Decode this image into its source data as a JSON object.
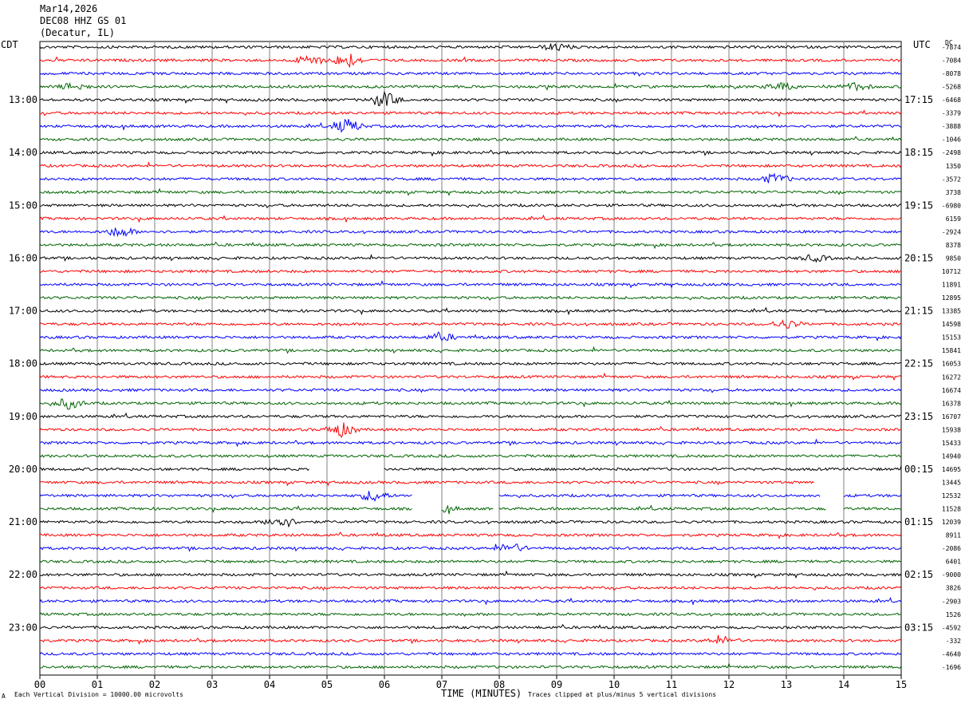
{
  "header": {
    "date": "Mar14,2026",
    "station": "DEC08 HHZ GS 01",
    "location": "(Decatur, IL)"
  },
  "left_zone": "CDT",
  "right_zone": "UTC",
  "dc_label": "DC",
  "footer": {
    "scale_note": "Each Vertical Division = 10000.00 microvolts",
    "clip_note": "Traces clipped at plus/minus 5 vertical divisions",
    "corner_mark": "A"
  },
  "colors": {
    "black": "#000000",
    "red": "#ff0000",
    "blue": "#0000ff",
    "green": "#006400",
    "grid": "#808080"
  },
  "chart_data": {
    "type": "line",
    "title": "Mar14,2026 DEC08 HHZ GS 01 (Decatur, IL)",
    "xlabel": "TIME (MINUTES)",
    "x_ticks": [
      "00",
      "01",
      "02",
      "03",
      "04",
      "05",
      "06",
      "07",
      "08",
      "09",
      "10",
      "11",
      "12",
      "13",
      "14",
      "15"
    ],
    "xlim": [
      0,
      15
    ],
    "trace_color_cycle": [
      "black",
      "red",
      "blue",
      "green"
    ],
    "left_hour_labels": [
      "13:00",
      "14:00",
      "15:00",
      "16:00",
      "17:00",
      "18:00",
      "19:00",
      "20:00",
      "21:00",
      "22:00",
      "23:00"
    ],
    "right_hour_labels": [
      "17:15",
      "18:15",
      "19:15",
      "20:15",
      "21:15",
      "22:15",
      "23:15",
      "00:15",
      "01:15",
      "02:15",
      "03:15"
    ],
    "dc_offsets": [
      "-7874",
      "-7084",
      "-8078",
      "-5268",
      "-6468",
      "-3379",
      "-3888",
      "-1046",
      "-2498",
      "1350",
      "-3572",
      "3738",
      "-6980",
      "6159",
      "-2924",
      "8378",
      "9850",
      "10712",
      "11891",
      "12895",
      "13385",
      "14598",
      "15153",
      "15841",
      "16053",
      "16272",
      "16674",
      "16378",
      "16707",
      "15938",
      "15433",
      "14940",
      "14695",
      "13445",
      "12532",
      "11528",
      "12039",
      "8911",
      "-2086",
      "6401",
      "-9000",
      "3826",
      "-2903",
      "1526",
      "-4592",
      "-332",
      "-4640",
      "-1696"
    ],
    "events": [
      {
        "trace": 0,
        "minute": 9.0,
        "amplitude": 0.6
      },
      {
        "trace": 1,
        "minute": 5.35,
        "amplitude": 1.2
      },
      {
        "trace": 1,
        "minute": 4.7,
        "amplitude": 0.8
      },
      {
        "trace": 3,
        "minute": 0.6,
        "amplitude": 0.6
      },
      {
        "trace": 3,
        "minute": 12.9,
        "amplitude": 0.6
      },
      {
        "trace": 3,
        "minute": 14.2,
        "amplitude": 0.6
      },
      {
        "trace": 4,
        "minute": 6.0,
        "amplitude": 1.3
      },
      {
        "trace": 6,
        "minute": 5.35,
        "amplitude": 1.2
      },
      {
        "trace": 10,
        "minute": 12.8,
        "amplitude": 0.8
      },
      {
        "trace": 14,
        "minute": 1.4,
        "amplitude": 0.8
      },
      {
        "trace": 16,
        "minute": 13.5,
        "amplitude": 0.5
      },
      {
        "trace": 21,
        "minute": 13.0,
        "amplitude": 0.7
      },
      {
        "trace": 22,
        "minute": 7.0,
        "amplitude": 0.6
      },
      {
        "trace": 27,
        "minute": 0.5,
        "amplitude": 0.9
      },
      {
        "trace": 29,
        "minute": 5.25,
        "amplitude": 1.2
      },
      {
        "trace": 34,
        "minute": 5.8,
        "amplitude": 0.9
      },
      {
        "trace": 35,
        "minute": 7.0,
        "amplitude": 0.6
      },
      {
        "trace": 36,
        "minute": 4.2,
        "amplitude": 1.0
      },
      {
        "trace": 38,
        "minute": 8.2,
        "amplitude": 0.8
      },
      {
        "trace": 45,
        "minute": 11.9,
        "amplitude": 0.6
      }
    ],
    "gaps": [
      {
        "trace": 32,
        "start": 4.7,
        "end": 6.0
      },
      {
        "trace": 33,
        "start": 13.5,
        "end": 15.0
      },
      {
        "trace": 34,
        "start": 6.5,
        "end": 8.0
      },
      {
        "trace": 34,
        "start": 13.6,
        "end": 14.0
      },
      {
        "trace": 35,
        "start": 6.5,
        "end": 7.0
      },
      {
        "trace": 35,
        "start": 7.9,
        "end": 8.0
      },
      {
        "trace": 35,
        "start": 13.7,
        "end": 14.0
      }
    ],
    "grid": true
  }
}
